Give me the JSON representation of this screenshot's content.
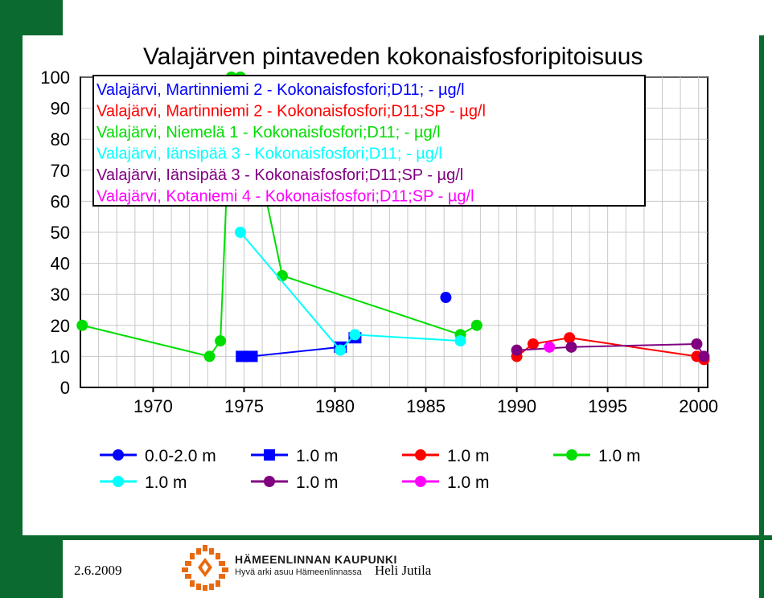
{
  "title": "Valajärven pintaveden kokonaisfosforipitoisuus",
  "footer": {
    "date": "2.6.2009",
    "author": "Heli Jutila",
    "org_name": "HÄMEENLINNAN KAUPUNKI",
    "org_slogan": "Hyvä arki asuu Hämeenlinnassa"
  },
  "colors": {
    "blue": "#0000ff",
    "red": "#ff0000",
    "green": "#00dd00",
    "cyan": "#00ffff",
    "purple": "#800080",
    "magenta": "#ff00ff",
    "brand_green": "#0b6b2e",
    "logo_orange": "#e86a10"
  },
  "chart_data": {
    "type": "line",
    "title": "Valajärven pintaveden kokonaisfosforipitoisuus",
    "xlim": [
      1966,
      2000.5
    ],
    "ylim": [
      0,
      100
    ],
    "x_ticks": [
      1970,
      1975,
      1980,
      1985,
      1990,
      1995,
      2000
    ],
    "y_ticks": [
      0,
      10,
      20,
      30,
      40,
      50,
      60,
      70,
      80,
      90,
      100
    ],
    "grid": true,
    "legend_top": [
      {
        "text": "Valajärvi, Martinniemi 2 - Kokonaisfosfori;D11; - µg/l",
        "color": "#0000ff"
      },
      {
        "text": "Valajärvi, Martinniemi 2 - Kokonaisfosfori;D11;SP  - µg/l",
        "color": "#ff0000"
      },
      {
        "text": "Valajärvi, Niemelä 1 - Kokonaisfosfori;D11; - µg/l",
        "color": "#00dd00"
      },
      {
        "text": "Valajärvi, Iänsipää 3 - Kokonaisfosfori;D11; - µg/l",
        "color": "#00ffff"
      },
      {
        "text": "Valajärvi, Iänsipää 3 - Kokonaisfosfori;D11;SP  - µg/l",
        "color": "#800080"
      },
      {
        "text": "Valajärvi, Kotaniemi 4 - Kokonaisfosfori;D11;SP  - µg/l",
        "color": "#ff00ff"
      }
    ],
    "legend_bottom": [
      {
        "label": "0.0-2.0 m",
        "color": "#0000ff",
        "marker": "circle"
      },
      {
        "label": "1.0 m",
        "color": "#0000ff",
        "marker": "square"
      },
      {
        "label": "1.0 m",
        "color": "#ff0000",
        "marker": "circle"
      },
      {
        "label": "1.0 m",
        "color": "#00dd00",
        "marker": "circle"
      },
      {
        "label": "1.0 m",
        "color": "#00ffff",
        "marker": "circle"
      },
      {
        "label": "1.0 m",
        "color": "#800080",
        "marker": "circle"
      },
      {
        "label": "1.0 m",
        "color": "#ff00ff",
        "marker": "circle"
      }
    ],
    "series": [
      {
        "name": "0.0-2.0 m",
        "color": "#0000ff",
        "marker": "circle",
        "line": false,
        "points": [
          [
            1986.1,
            29
          ]
        ]
      },
      {
        "name": "1.0 m",
        "color": "#0000ff",
        "marker": "square",
        "line": true,
        "points": [
          [
            1974.9,
            10
          ],
          [
            1975.4,
            10
          ],
          [
            1980.3,
            13
          ],
          [
            1981.1,
            16
          ]
        ]
      },
      {
        "name": "1.0 m",
        "color": "#00dd00",
        "marker": "circle",
        "line": true,
        "points": [
          [
            1966.1,
            20
          ],
          [
            1973.1,
            10
          ],
          [
            1973.7,
            15
          ],
          [
            1974.3,
            100
          ],
          [
            1974.8,
            100
          ],
          [
            1977.1,
            36
          ],
          [
            1986.9,
            17
          ],
          [
            1987.8,
            20
          ]
        ]
      },
      {
        "name": "1.0 m",
        "color": "#00ffff",
        "marker": "circle",
        "line": true,
        "points": [
          [
            1974.8,
            50
          ],
          [
            1980.3,
            12
          ],
          [
            1981.1,
            17
          ],
          [
            1986.9,
            15
          ]
        ]
      },
      {
        "name": "1.0 m",
        "color": "#ff0000",
        "marker": "circle",
        "line": true,
        "points": [
          [
            1990,
            10
          ],
          [
            1990.9,
            14
          ],
          [
            1992.9,
            16
          ],
          [
            1999.9,
            10
          ],
          [
            2000.3,
            9
          ]
        ]
      },
      {
        "name": "1.0 m",
        "color": "#800080",
        "marker": "circle",
        "line": true,
        "points": [
          [
            1990,
            12
          ],
          [
            1993,
            13
          ],
          [
            1999.9,
            14
          ],
          [
            2000.3,
            10
          ]
        ]
      },
      {
        "name": "1.0 m",
        "color": "#ff00ff",
        "marker": "circle",
        "line": false,
        "points": [
          [
            1991.8,
            13
          ]
        ]
      }
    ]
  }
}
